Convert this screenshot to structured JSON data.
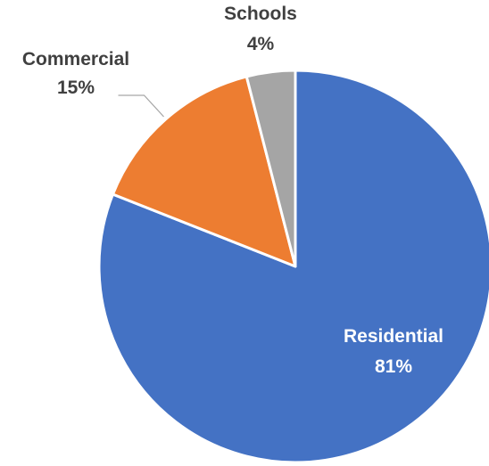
{
  "chart_data": {
    "type": "pie",
    "title": "",
    "start_angle_deg": 0,
    "direction": "clockwise",
    "slices": [
      {
        "label": "Residential",
        "value": 81,
        "value_label": "81%",
        "color": "#4472C4",
        "label_color": "#ffffff",
        "label_placement": "inside"
      },
      {
        "label": "Commercial",
        "value": 15,
        "value_label": "15%",
        "color": "#ED7D31",
        "label_color": "#404040",
        "label_placement": "outside-with-leader"
      },
      {
        "label": "Schools",
        "value": 4,
        "value_label": "4%",
        "color": "#A5A5A5",
        "label_color": "#404040",
        "label_placement": "outside"
      }
    ],
    "legend": "none"
  }
}
